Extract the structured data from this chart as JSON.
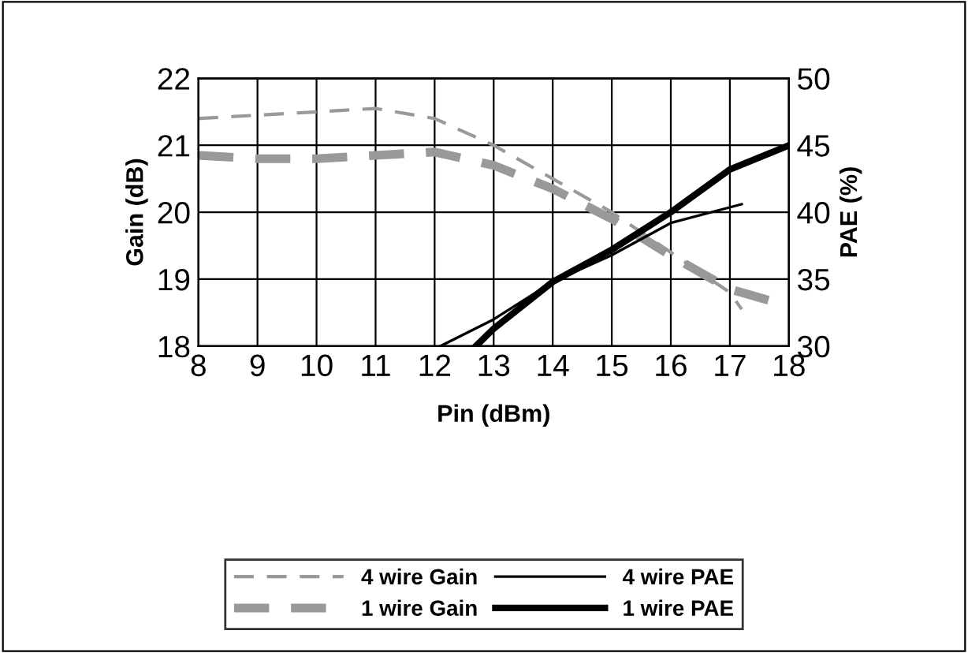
{
  "chart_data": {
    "type": "line",
    "xlabel": "Pin (dBm)",
    "ylabel": "Gain (dB)",
    "y2label": "PAE (%)",
    "xlim": [
      8,
      18
    ],
    "xticks": [
      8,
      9,
      10,
      11,
      12,
      13,
      14,
      15,
      16,
      17,
      18
    ],
    "ylim": [
      18,
      22
    ],
    "yticks": [
      18,
      19,
      20,
      21,
      22
    ],
    "y2lim": [
      30,
      50
    ],
    "y2ticks": [
      30,
      35,
      40,
      45,
      50
    ],
    "grid": true,
    "legend": "bottom",
    "marker": "none",
    "series": [
      {
        "name": "4 wire Gain",
        "color": "#999999",
        "line_style": "dashed",
        "x": [
          8,
          9,
          10,
          11,
          12,
          13,
          14,
          15,
          16,
          17,
          17.2
        ],
        "values": [
          21.4,
          21.45,
          21.5,
          21.55,
          21.4,
          21.0,
          20.5,
          20.0,
          19.4,
          18.8,
          18.55
        ]
      },
      {
        "name": "1 wire Gain",
        "color": "#999999",
        "line_style": "dashed",
        "x": [
          8,
          9,
          10,
          11,
          12,
          13,
          14,
          15,
          16,
          17,
          18
        ],
        "values": [
          20.85,
          20.8,
          20.8,
          20.85,
          20.9,
          20.7,
          20.35,
          19.9,
          19.35,
          18.85,
          18.6
        ]
      },
      {
        "name": "4 wire PAE",
        "color": "#000000",
        "line_style": "solid",
        "axis": "y2",
        "x": [
          12.1,
          13,
          14,
          15,
          16,
          17.2
        ],
        "values": [
          30,
          32,
          34.8,
          36.8,
          39.2,
          40.6
        ]
      },
      {
        "name": "1 wire PAE",
        "color": "#000000",
        "line_style": "solid",
        "axis": "y2",
        "x": [
          12.7,
          13,
          14,
          15,
          16,
          17,
          18
        ],
        "values": [
          30,
          31.3,
          34.8,
          37.2,
          40,
          43.2,
          45
        ]
      }
    ]
  }
}
